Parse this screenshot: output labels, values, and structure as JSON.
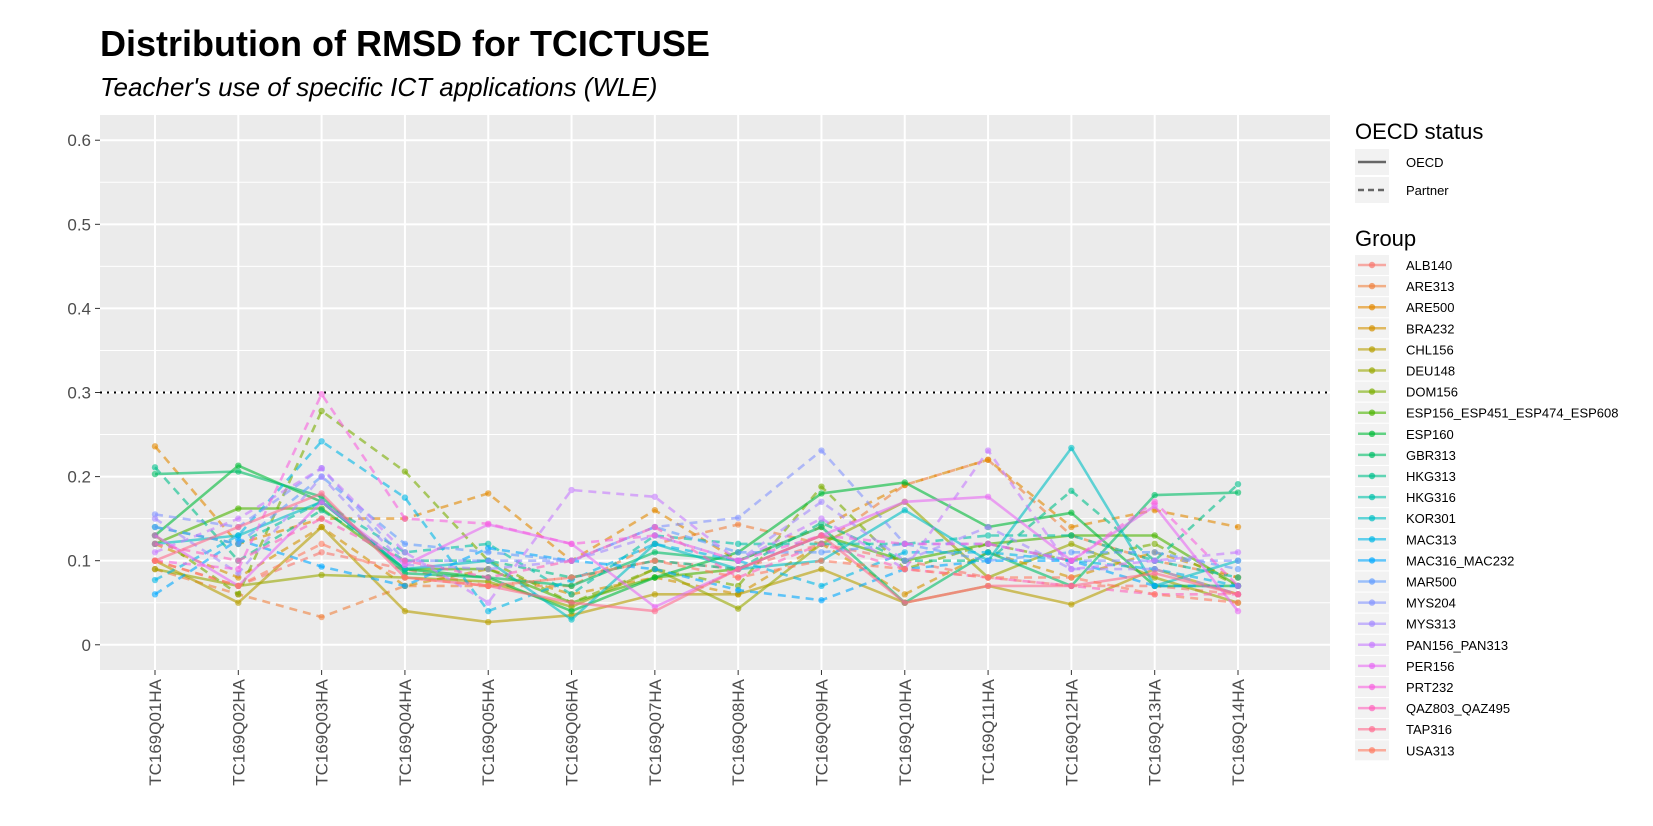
{
  "chart_data": {
    "type": "line",
    "title": "Distribution of RMSD for TCICTUSE",
    "subtitle": "Teacher's use of specific ICT applications (WLE)",
    "xlabel": "",
    "ylabel": "",
    "ylim": [
      -0.03,
      0.63
    ],
    "yticks": [
      0,
      0.1,
      0.2,
      0.3,
      0.4,
      0.5,
      0.6
    ],
    "ytick_labels": [
      "0",
      "0.1",
      "0.2",
      "0.3",
      "0.4",
      "0.5",
      "0.6"
    ],
    "reference_line": 0.3,
    "grid": true,
    "legend_position": "right",
    "categories": [
      "TC169Q01HA",
      "TC169Q02HA",
      "TC169Q03HA",
      "TC169Q04HA",
      "TC169Q05HA",
      "TC169Q06HA",
      "TC169Q07HA",
      "TC169Q08HA",
      "TC169Q09HA",
      "TC169Q10HA",
      "TC169Q11HA",
      "TC169Q12HA",
      "TC169Q13HA",
      "TC169Q14HA"
    ],
    "linetype_legend": {
      "title": "OECD status",
      "items": [
        {
          "label": "OECD",
          "style": "solid"
        },
        {
          "label": "Partner",
          "style": "dashed"
        }
      ]
    },
    "group_legend_title": "Group",
    "series": [
      {
        "name": "ALB140",
        "color": "#F8766D",
        "status": "Partner",
        "values": [
          0.1,
          0.07,
          0.11,
          0.09,
          0.07,
          0.08,
          0.1,
          0.09,
          0.12,
          0.1,
          0.08,
          0.07,
          0.07,
          0.06
        ]
      },
      {
        "name": "ARE313",
        "color": "#F0823F",
        "status": "Partner",
        "values": [
          0.09,
          0.06,
          0.033,
          0.07,
          0.07,
          0.07,
          0.12,
          0.143,
          0.12,
          0.19,
          0.22,
          0.13,
          0.1,
          0.08
        ]
      },
      {
        "name": "ARE500",
        "color": "#E38900",
        "status": "Partner",
        "values": [
          0.236,
          0.12,
          0.15,
          0.15,
          0.18,
          0.1,
          0.16,
          0.1,
          0.14,
          0.19,
          0.22,
          0.14,
          0.16,
          0.14
        ]
      },
      {
        "name": "BRA232",
        "color": "#D39200",
        "status": "Partner",
        "values": [
          0.12,
          0.08,
          0.14,
          0.07,
          0.09,
          0.06,
          0.08,
          0.06,
          0.12,
          0.06,
          0.11,
          0.08,
          0.11,
          0.08
        ]
      },
      {
        "name": "CHL156",
        "color": "#B79F00",
        "status": "OECD",
        "values": [
          0.1,
          0.05,
          0.14,
          0.04,
          0.027,
          0.035,
          0.06,
          0.06,
          0.09,
          0.05,
          0.07,
          0.048,
          0.09,
          0.06
        ]
      },
      {
        "name": "DEU148",
        "color": "#99A800",
        "status": "OECD",
        "values": [
          0.09,
          0.07,
          0.083,
          0.08,
          0.075,
          0.045,
          0.09,
          0.043,
          0.12,
          0.17,
          0.08,
          0.12,
          0.08,
          0.05
        ]
      },
      {
        "name": "DOM156",
        "color": "#7AAE00",
        "status": "Partner",
        "values": [
          0.13,
          0.06,
          0.278,
          0.206,
          0.1,
          0.05,
          0.09,
          0.07,
          0.188,
          0.09,
          0.12,
          0.1,
          0.12,
          0.07
        ]
      },
      {
        "name": "ESP156_ESP451_ESP474_ESP608",
        "color": "#4BB400",
        "status": "OECD",
        "values": [
          0.12,
          0.162,
          0.162,
          0.09,
          0.09,
          0.05,
          0.08,
          0.09,
          0.13,
          0.1,
          0.12,
          0.13,
          0.13,
          0.07
        ]
      },
      {
        "name": "ESP160",
        "color": "#00BA38",
        "status": "OECD",
        "values": [
          0.13,
          0.213,
          0.17,
          0.09,
          0.08,
          0.04,
          0.08,
          0.11,
          0.18,
          0.193,
          0.14,
          0.157,
          0.07,
          0.07
        ]
      },
      {
        "name": "GBR313",
        "color": "#00BE67",
        "status": "OECD",
        "values": [
          0.203,
          0.206,
          0.176,
          0.085,
          0.08,
          0.07,
          0.11,
          0.1,
          0.14,
          0.05,
          0.11,
          0.07,
          0.178,
          0.181
        ]
      },
      {
        "name": "HKG313",
        "color": "#00C08B",
        "status": "Partner",
        "values": [
          0.211,
          0.1,
          0.16,
          0.1,
          0.1,
          0.08,
          0.1,
          0.09,
          0.145,
          0.1,
          0.1,
          0.183,
          0.1,
          0.191
        ]
      },
      {
        "name": "HKG316",
        "color": "#00C1A9",
        "status": "Partner",
        "values": [
          0.14,
          0.12,
          0.17,
          0.11,
          0.12,
          0.06,
          0.13,
          0.12,
          0.12,
          0.12,
          0.13,
          0.13,
          0.1,
          0.08
        ]
      },
      {
        "name": "KOR301",
        "color": "#00BFC4",
        "status": "OECD",
        "values": [
          0.12,
          0.13,
          0.17,
          0.09,
          0.1,
          0.03,
          0.12,
          0.09,
          0.1,
          0.16,
          0.1,
          0.234,
          0.07,
          0.1
        ]
      },
      {
        "name": "MAC313",
        "color": "#00B8E7",
        "status": "Partner",
        "values": [
          0.077,
          0.13,
          0.242,
          0.175,
          0.04,
          0.077,
          0.12,
          0.1,
          0.07,
          0.11,
          0.11,
          0.1,
          0.09,
          0.07
        ]
      },
      {
        "name": "MAC316_MAC232",
        "color": "#00A9FF",
        "status": "Partner",
        "values": [
          0.06,
          0.125,
          0.093,
          0.07,
          0.115,
          0.1,
          0.09,
          0.065,
          0.053,
          0.09,
          0.1,
          0.1,
          0.07,
          0.07
        ]
      },
      {
        "name": "MAR500",
        "color": "#619CFF",
        "status": "Partner",
        "values": [
          0.14,
          0.12,
          0.2,
          0.12,
          0.11,
          0.1,
          0.14,
          0.11,
          0.11,
          0.12,
          0.1,
          0.11,
          0.11,
          0.09
        ]
      },
      {
        "name": "MYS204",
        "color": "#8494FF",
        "status": "Partner",
        "values": [
          0.155,
          0.14,
          0.21,
          0.1,
          0.1,
          0.1,
          0.14,
          0.151,
          0.231,
          0.12,
          0.12,
          0.1,
          0.1,
          0.1
        ]
      },
      {
        "name": "MYS313",
        "color": "#A58AFF",
        "status": "Partner",
        "values": [
          0.15,
          0.085,
          0.2,
          0.095,
          0.09,
          0.1,
          0.13,
          0.1,
          0.17,
          0.1,
          0.14,
          0.09,
          0.09,
          0.06
        ]
      },
      {
        "name": "PAN156_PAN313",
        "color": "#C77CFF",
        "status": "Partner",
        "values": [
          0.11,
          0.15,
          0.21,
          0.11,
          0.05,
          0.184,
          0.176,
          0.1,
          0.15,
          0.09,
          0.231,
          0.09,
          0.1,
          0.11
        ]
      },
      {
        "name": "PER156",
        "color": "#E76BF3",
        "status": "OECD",
        "values": [
          0.13,
          0.07,
          0.17,
          0.095,
          0.143,
          0.12,
          0.045,
          0.09,
          0.13,
          0.17,
          0.176,
          0.1,
          0.165,
          0.04
        ]
      },
      {
        "name": "PRT232",
        "color": "#F863DF",
        "status": "Partner",
        "values": [
          0.1,
          0.09,
          0.298,
          0.15,
          0.144,
          0.12,
          0.13,
          0.1,
          0.13,
          0.12,
          0.12,
          0.1,
          0.17,
          0.07
        ]
      },
      {
        "name": "QAZ803_QAZ495",
        "color": "#FF62BC",
        "status": "Partner",
        "values": [
          0.12,
          0.1,
          0.15,
          0.1,
          0.08,
          0.1,
          0.14,
          0.08,
          0.12,
          0.09,
          0.08,
          0.07,
          0.06,
          0.06
        ]
      },
      {
        "name": "TAP316",
        "color": "#FF6C90",
        "status": "OECD",
        "values": [
          0.1,
          0.14,
          0.18,
          0.08,
          0.07,
          0.05,
          0.04,
          0.09,
          0.13,
          0.05,
          0.07,
          0.07,
          0.085,
          0.06
        ]
      },
      {
        "name": "USA313",
        "color": "#FF7B61",
        "status": "Partner",
        "values": [
          0.1,
          0.07,
          0.12,
          0.08,
          0.07,
          0.08,
          0.1,
          0.08,
          0.1,
          0.09,
          0.08,
          0.08,
          0.06,
          0.05
        ]
      }
    ]
  }
}
